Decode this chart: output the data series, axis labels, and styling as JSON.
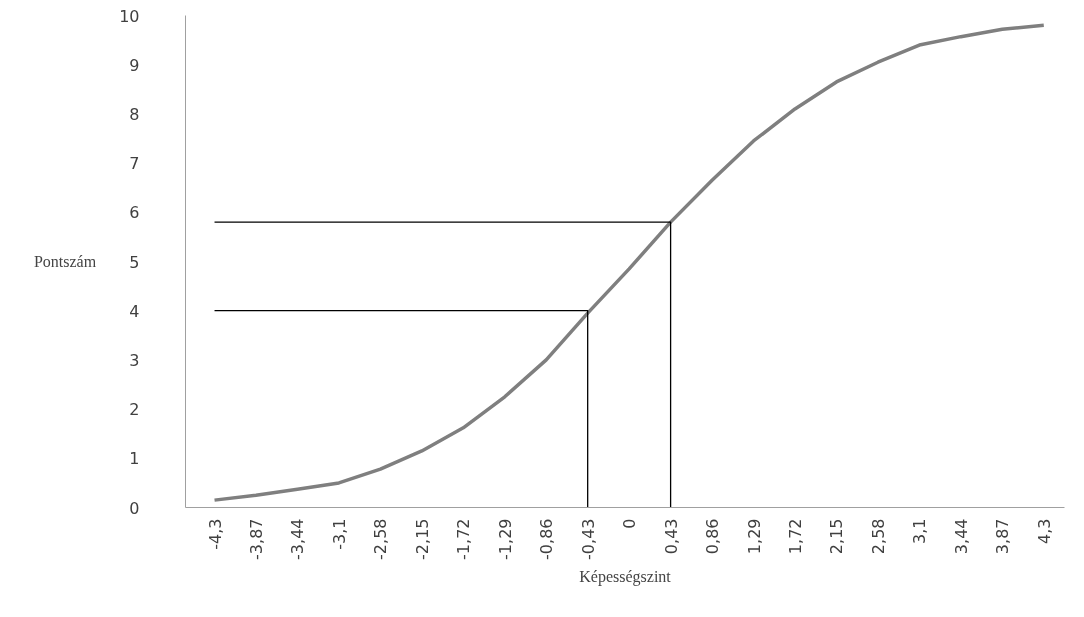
{
  "chart_data": {
    "type": "line",
    "xlabel": "Képességszint",
    "ylabel": "Pontszám",
    "categories": [
      "-4,3",
      "-3,87",
      "-3,44",
      "-3,1",
      "-2,58",
      "-2,15",
      "-1,72",
      "-1,29",
      "-0,86",
      "-0,43",
      "0",
      "0,43",
      "0,86",
      "1,29",
      "1,72",
      "2,15",
      "2,58",
      "3,1",
      "3,44",
      "3,87",
      "4,3"
    ],
    "series": [
      {
        "color": "#7f7f7f",
        "values": [
          0.15,
          0.25,
          0.37,
          0.5,
          0.78,
          1.15,
          1.62,
          2.25,
          3.0,
          3.95,
          4.85,
          5.8,
          6.65,
          7.45,
          8.1,
          8.65,
          9.05,
          9.4,
          9.57,
          9.72,
          9.8
        ]
      },
      {
        "color": "#000000",
        "x": [
          "-4,3",
          "-0,43",
          "-0,43"
        ],
        "values": [
          4,
          4,
          0
        ]
      },
      {
        "color": "#000000",
        "x": [
          "-4,3",
          "0,43",
          "0,43"
        ],
        "values": [
          5.8,
          5.8,
          0
        ]
      }
    ],
    "ylim": [
      0,
      10
    ],
    "yticks": [
      0,
      1,
      2,
      3,
      4,
      5,
      6,
      7,
      8,
      9,
      10
    ],
    "grid": false
  }
}
